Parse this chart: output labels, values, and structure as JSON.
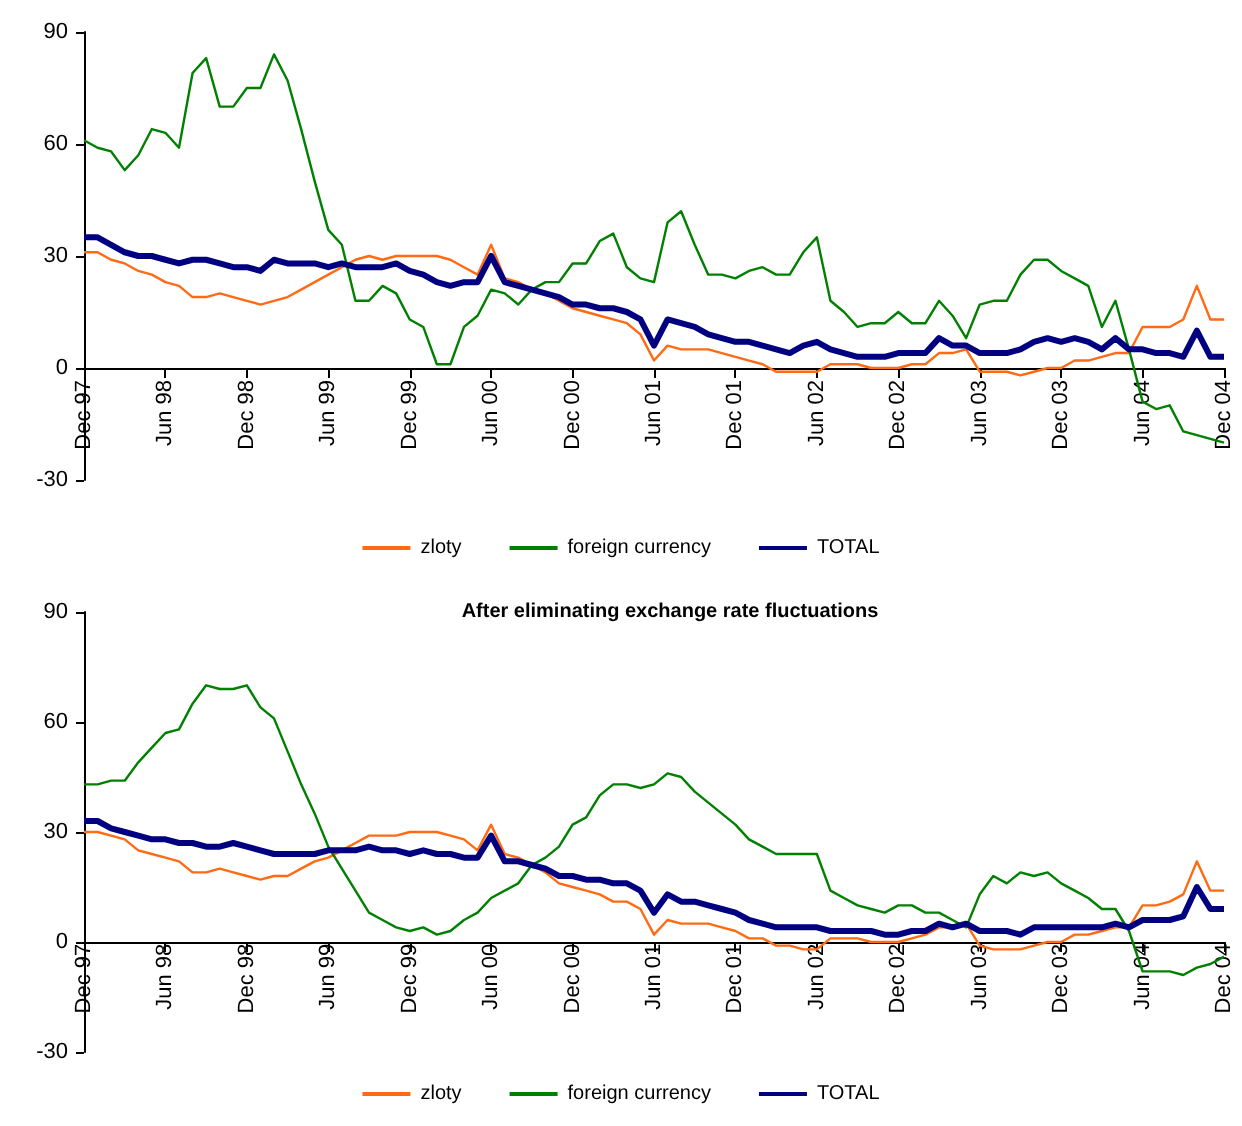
{
  "chart_data": [
    {
      "type": "line",
      "categories": [
        "Dec 97",
        null,
        null,
        null,
        null,
        null,
        "Jun 98",
        null,
        null,
        null,
        null,
        null,
        "Dec 98",
        null,
        null,
        null,
        null,
        null,
        "Jun 99",
        null,
        null,
        null,
        null,
        null,
        "Dec 99",
        null,
        null,
        null,
        null,
        null,
        "Jun 00",
        null,
        null,
        null,
        null,
        null,
        "Dec 00",
        null,
        null,
        null,
        null,
        null,
        "Jun 01",
        null,
        null,
        null,
        null,
        null,
        "Dec 01",
        null,
        null,
        null,
        null,
        null,
        "Jun 02",
        null,
        null,
        null,
        null,
        null,
        "Dec 02",
        null,
        null,
        null,
        null,
        null,
        "Jun 03",
        null,
        null,
        null,
        null,
        null,
        "Dec 03",
        null,
        null,
        null,
        null,
        null,
        "Jun 04",
        null,
        null,
        null,
        null,
        null,
        "Dec 04"
      ],
      "series": [
        {
          "name": "zloty",
          "color": "#ff6a13",
          "values": [
            31,
            31,
            29,
            28,
            26,
            25,
            23,
            22,
            19,
            19,
            20,
            19,
            18,
            17,
            18,
            19,
            21,
            23,
            25,
            27,
            29,
            30,
            29,
            30,
            30,
            30,
            30,
            29,
            27,
            25,
            33,
            24,
            23,
            21,
            20,
            18,
            16,
            15,
            14,
            13,
            12,
            9,
            2,
            6,
            5,
            5,
            5,
            4,
            3,
            2,
            1,
            -1,
            -1,
            -1,
            -1,
            1,
            1,
            1,
            0,
            0,
            0,
            1,
            1,
            4,
            4,
            5,
            -1,
            -1,
            -1,
            -2,
            -1,
            0,
            0,
            2,
            2,
            3,
            4,
            4,
            11,
            11,
            11,
            13,
            22,
            13,
            13
          ]
        },
        {
          "name": "foreign currency",
          "color": "#008000",
          "values": [
            61,
            59,
            58,
            53,
            57,
            64,
            63,
            59,
            79,
            83,
            70,
            70,
            75,
            75,
            84,
            77,
            64,
            50,
            37,
            33,
            18,
            18,
            22,
            20,
            13,
            11,
            1,
            1,
            11,
            14,
            21,
            20,
            17,
            21,
            23,
            23,
            28,
            28,
            34,
            36,
            27,
            24,
            23,
            39,
            42,
            33,
            25,
            25,
            24,
            26,
            27,
            25,
            25,
            31,
            35,
            18,
            15,
            11,
            12,
            12,
            15,
            12,
            12,
            18,
            14,
            8,
            17,
            18,
            18,
            25,
            29,
            29,
            26,
            24,
            22,
            11,
            18,
            5,
            -9,
            -11,
            -10,
            -17,
            -18,
            -19,
            -20
          ]
        },
        {
          "name": "TOTAL",
          "color": "#000080",
          "values": [
            35,
            35,
            33,
            31,
            30,
            30,
            29,
            28,
            29,
            29,
            28,
            27,
            27,
            26,
            29,
            28,
            28,
            28,
            27,
            28,
            27,
            27,
            27,
            28,
            26,
            25,
            23,
            22,
            23,
            23,
            30,
            23,
            22,
            21,
            20,
            19,
            17,
            17,
            16,
            16,
            15,
            13,
            6,
            13,
            12,
            11,
            9,
            8,
            7,
            7,
            6,
            5,
            4,
            6,
            7,
            5,
            4,
            3,
            3,
            3,
            4,
            4,
            4,
            8,
            6,
            6,
            4,
            4,
            4,
            5,
            7,
            8,
            7,
            8,
            7,
            5,
            8,
            5,
            5,
            4,
            4,
            3,
            10,
            3,
            3
          ]
        }
      ],
      "ylim": [
        -30,
        90
      ],
      "yticks": [
        -30,
        0,
        30,
        60,
        90
      ],
      "legend": "bottom"
    },
    {
      "type": "line",
      "title": "After eliminating exchange rate fluctuations",
      "categories": [
        "Dec 97",
        null,
        null,
        null,
        null,
        null,
        "Jun 98",
        null,
        null,
        null,
        null,
        null,
        "Dec 98",
        null,
        null,
        null,
        null,
        null,
        "Jun 99",
        null,
        null,
        null,
        null,
        null,
        "Dec 99",
        null,
        null,
        null,
        null,
        null,
        "Jun 00",
        null,
        null,
        null,
        null,
        null,
        "Dec 00",
        null,
        null,
        null,
        null,
        null,
        "Jun 01",
        null,
        null,
        null,
        null,
        null,
        "Dec 01",
        null,
        null,
        null,
        null,
        null,
        "Jun 02",
        null,
        null,
        null,
        null,
        null,
        "Dec 02",
        null,
        null,
        null,
        null,
        null,
        "Jun 03",
        null,
        null,
        null,
        null,
        null,
        "Dec 03",
        null,
        null,
        null,
        null,
        null,
        "Jun 04",
        null,
        null,
        null,
        null,
        null,
        "Dec 04"
      ],
      "series": [
        {
          "name": "zloty",
          "color": "#ff6a13",
          "values": [
            30,
            30,
            29,
            28,
            25,
            24,
            23,
            22,
            19,
            19,
            20,
            19,
            18,
            17,
            18,
            18,
            20,
            22,
            23,
            25,
            27,
            29,
            29,
            29,
            30,
            30,
            30,
            29,
            28,
            25,
            32,
            24,
            23,
            21,
            19,
            16,
            15,
            14,
            13,
            11,
            11,
            9,
            2,
            6,
            5,
            5,
            5,
            4,
            3,
            1,
            1,
            -1,
            -1,
            -2,
            -2,
            1,
            1,
            1,
            0,
            0,
            0,
            1,
            2,
            4,
            4,
            5,
            -1,
            -2,
            -2,
            -2,
            -1,
            0,
            0,
            2,
            2,
            3,
            4,
            4,
            10,
            10,
            11,
            13,
            22,
            14,
            14
          ]
        },
        {
          "name": "foreign currency",
          "color": "#008000",
          "values": [
            43,
            43,
            44,
            44,
            49,
            53,
            57,
            58,
            65,
            70,
            69,
            69,
            70,
            64,
            61,
            52,
            43,
            35,
            26,
            20,
            14,
            8,
            6,
            4,
            3,
            4,
            2,
            3,
            6,
            8,
            12,
            14,
            16,
            21,
            23,
            26,
            32,
            34,
            40,
            43,
            43,
            42,
            43,
            46,
            45,
            41,
            38,
            35,
            32,
            28,
            26,
            24,
            24,
            24,
            24,
            14,
            12,
            10,
            9,
            8,
            10,
            10,
            8,
            8,
            6,
            4,
            13,
            18,
            16,
            19,
            18,
            19,
            16,
            14,
            12,
            9,
            9,
            3,
            -8,
            -8,
            -8,
            -9,
            -7,
            -6,
            -4
          ]
        },
        {
          "name": "TOTAL",
          "color": "#000080",
          "values": [
            33,
            33,
            31,
            30,
            29,
            28,
            28,
            27,
            27,
            26,
            26,
            27,
            26,
            25,
            24,
            24,
            24,
            24,
            25,
            25,
            25,
            26,
            25,
            25,
            24,
            25,
            24,
            24,
            23,
            23,
            29,
            22,
            22,
            21,
            20,
            18,
            18,
            17,
            17,
            16,
            16,
            14,
            8,
            13,
            11,
            11,
            10,
            9,
            8,
            6,
            5,
            4,
            4,
            4,
            4,
            3,
            3,
            3,
            3,
            2,
            2,
            3,
            3,
            5,
            4,
            5,
            3,
            3,
            3,
            2,
            4,
            4,
            4,
            4,
            4,
            4,
            5,
            4,
            6,
            6,
            6,
            7,
            15,
            9,
            9
          ]
        }
      ],
      "ylim": [
        -30,
        90
      ],
      "yticks": [
        -30,
        0,
        30,
        60,
        90
      ],
      "legend": "bottom"
    }
  ]
}
